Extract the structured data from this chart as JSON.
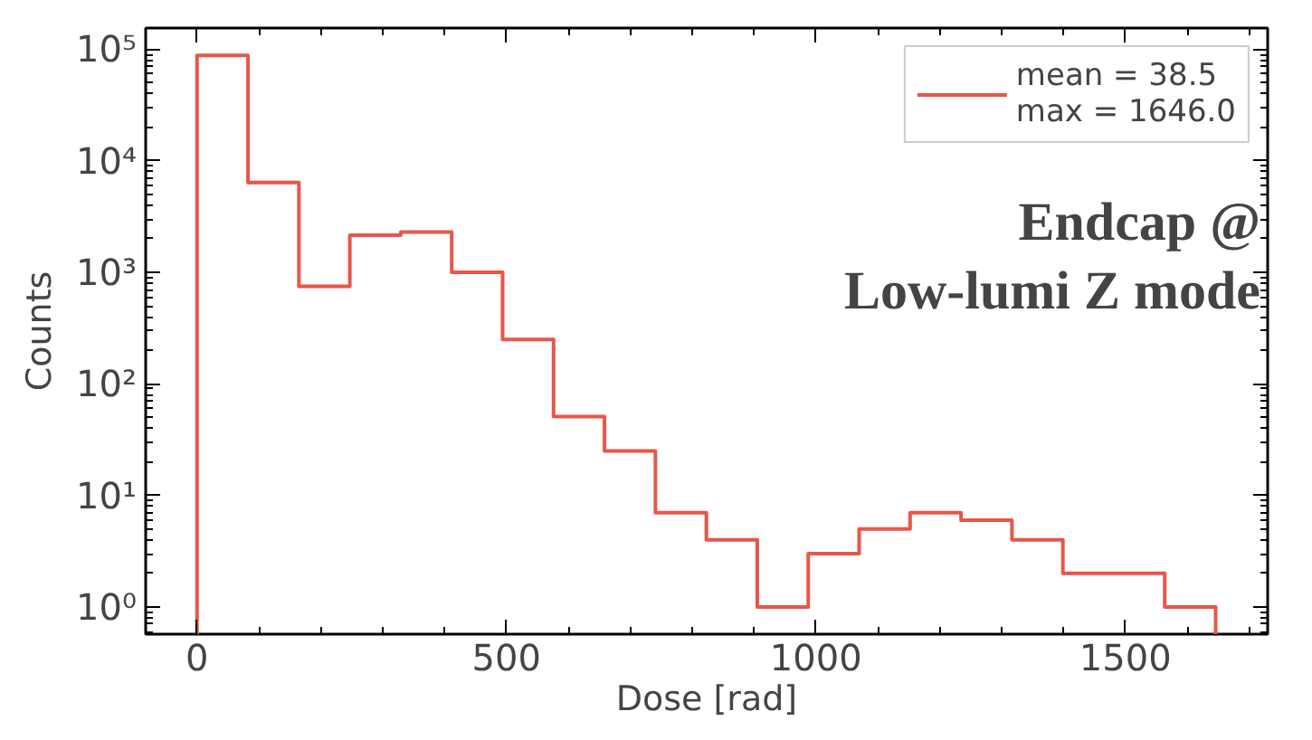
{
  "chart_data": {
    "type": "histogram",
    "xlabel": "Dose [rad]",
    "ylabel": "Counts",
    "bins": [
      0,
      82.3,
      164.6,
      246.9,
      329.2,
      411.5,
      493.8,
      576.1,
      658.4,
      740.7,
      823.0,
      905.3,
      987.6,
      1069.9,
      1152.2,
      1234.5,
      1316.8,
      1399.1,
      1481.4,
      1563.7,
      1646.0
    ],
    "series": [
      {
        "name": "mean = 38.5\nmax = 1646.0",
        "color": "#e8564a",
        "values": [
          88000,
          6400,
          750,
          2150,
          2300,
          1000,
          250,
          51,
          25,
          7,
          4,
          1,
          3,
          5,
          7,
          6,
          4,
          2,
          2,
          1
        ]
      }
    ],
    "annotations": [
      "Endcap @\nLow-lumi Z mode"
    ],
    "log": "y",
    "legend": "top right",
    "grid": false,
    "xlim": [
      -83,
      1730
    ],
    "ylim": [
      0.57,
      155000
    ],
    "xticks": [
      0,
      500,
      1000,
      1500
    ],
    "yticks": [
      {
        "value": 1,
        "label": "10⁰"
      },
      {
        "value": 10,
        "label": "10¹"
      },
      {
        "value": 100,
        "label": "10²"
      },
      {
        "value": 1000,
        "label": "10³"
      },
      {
        "value": 10000,
        "label": "10⁴"
      },
      {
        "value": 100000,
        "label": "10⁵"
      }
    ]
  }
}
